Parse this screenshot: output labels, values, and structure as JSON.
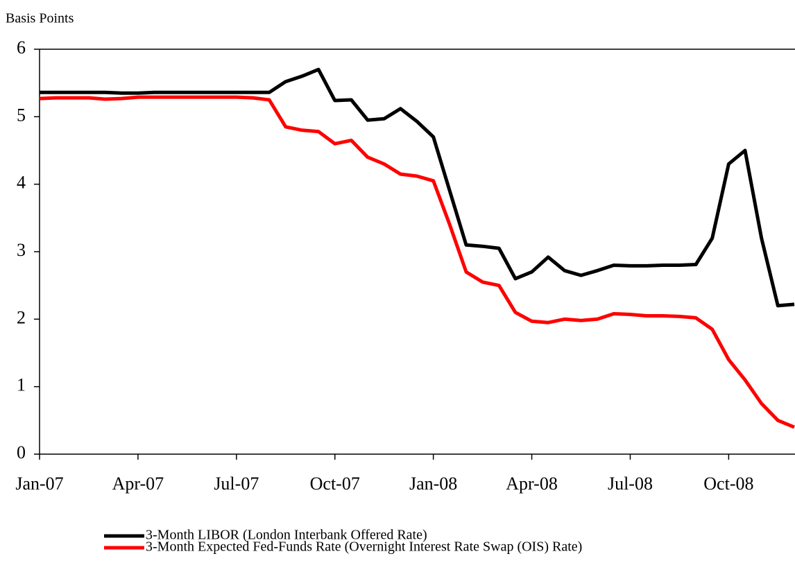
{
  "chart_data": {
    "type": "line",
    "y_label": "Basis Points",
    "categories": [
      "Jan-07",
      null,
      null,
      null,
      null,
      null,
      "Apr-07",
      null,
      null,
      null,
      null,
      null,
      "Jul-07",
      null,
      null,
      null,
      null,
      null,
      "Oct-07",
      null,
      null,
      null,
      null,
      null,
      "Jan-08",
      null,
      null,
      null,
      null,
      null,
      "Apr-08",
      null,
      null,
      null,
      null,
      null,
      "Jul-08",
      null,
      null,
      null,
      null,
      null,
      "Oct-08",
      null,
      null,
      null,
      null
    ],
    "series": [
      {
        "name": "3-Month LIBOR (London Interbank Offered Rate)",
        "color": "#000000",
        "values": [
          5.36,
          5.36,
          5.36,
          5.36,
          5.36,
          5.35,
          5.35,
          5.36,
          5.36,
          5.36,
          5.36,
          5.36,
          5.36,
          5.36,
          5.36,
          5.52,
          5.6,
          5.7,
          5.24,
          5.25,
          4.95,
          4.97,
          5.12,
          4.93,
          4.7,
          3.9,
          3.1,
          3.08,
          3.05,
          2.6,
          2.7,
          2.92,
          2.72,
          2.65,
          2.72,
          2.8,
          2.79,
          2.79,
          2.8,
          2.8,
          2.81,
          3.2,
          4.3,
          4.5,
          3.2,
          2.2,
          2.22
        ]
      },
      {
        "name": "3-Month Expected Fed-Funds Rate (Overnight Interest Rate Swap (OIS) Rate)",
        "color": "#ff0000",
        "values": [
          5.27,
          5.28,
          5.28,
          5.28,
          5.26,
          5.27,
          5.29,
          5.29,
          5.29,
          5.29,
          5.29,
          5.29,
          5.29,
          5.28,
          5.25,
          4.85,
          4.8,
          4.78,
          4.6,
          4.65,
          4.4,
          4.3,
          4.15,
          4.12,
          4.05,
          3.4,
          2.7,
          2.55,
          2.5,
          2.1,
          1.97,
          1.95,
          2.0,
          1.98,
          2.0,
          2.08,
          2.07,
          2.05,
          2.05,
          2.04,
          2.02,
          1.85,
          1.4,
          1.1,
          0.75,
          0.5,
          0.4
        ]
      }
    ],
    "ylim": [
      0,
      6
    ],
    "yticks": [
      0,
      1,
      2,
      3,
      4,
      5,
      6
    ],
    "grid": false
  }
}
